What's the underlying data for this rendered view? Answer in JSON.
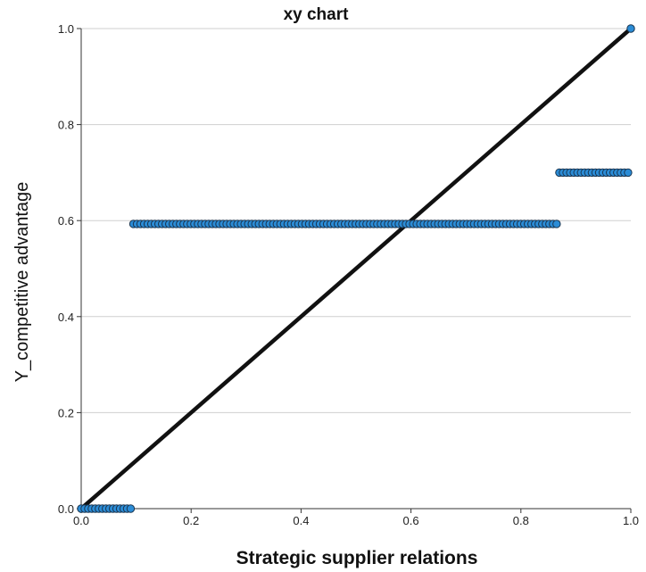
{
  "chart_data": {
    "type": "scatter",
    "title": "xy chart",
    "xlabel": "Strategic supplier relations",
    "ylabel": "Y_competitive advantage",
    "xlim": [
      0,
      1
    ],
    "ylim": [
      0,
      1
    ],
    "x_ticks": [
      "0.0",
      "0.2",
      "0.4",
      "0.6",
      "0.8",
      "1.0"
    ],
    "y_ticks": [
      "0.0",
      "0.2",
      "0.4",
      "0.6",
      "0.8",
      "1.0"
    ],
    "grid": "horizontal",
    "legend": "none",
    "marker_color": "#2b8cd6",
    "marker_edge_color": "#1a3550",
    "line_color": "#111111",
    "reference_line": {
      "x": [
        0,
        1
      ],
      "y": [
        0,
        1
      ]
    },
    "series": [
      {
        "segments": [
          {
            "x_start": 0.0,
            "x_end": 0.09,
            "y": 0.0
          },
          {
            "x_start": 0.095,
            "x_end": 0.865,
            "y": 0.593
          },
          {
            "x_start": 0.87,
            "x_end": 0.995,
            "y": 0.7
          }
        ],
        "points": [
          {
            "x": 1.0,
            "y": 1.0
          }
        ]
      }
    ]
  }
}
